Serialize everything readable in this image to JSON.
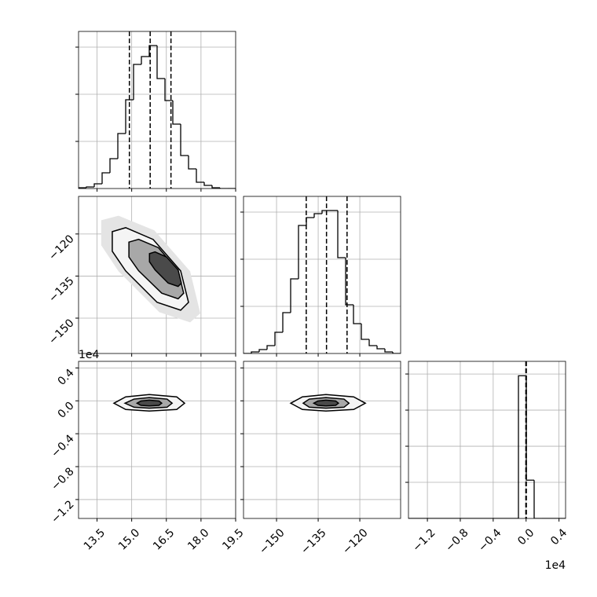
{
  "chart_data": [
    {
      "type": "hist",
      "xlim": [
        12.7,
        19.5
      ],
      "ylim": [
        0,
        2000
      ],
      "color": "#000000",
      "grid": true,
      "xticks": [
        13.5,
        15,
        16.5,
        18,
        19.5
      ],
      "yticks": [
        600,
        1200,
        1800
      ],
      "xtick_labels": false,
      "ytick_labels": false,
      "bins": [
        12.7,
        13.04,
        13.38,
        13.72,
        14.06,
        14.4,
        14.74,
        15.08,
        15.42,
        15.76,
        16.1,
        16.44,
        16.78,
        17.12,
        17.46,
        17.8,
        18.14,
        18.48,
        18.82,
        19.16,
        19.5
      ],
      "counts": [
        10,
        20,
        60,
        200,
        380,
        700,
        1130,
        1580,
        1680,
        1820,
        1400,
        1120,
        820,
        420,
        250,
        80,
        40,
        10,
        0,
        0
      ],
      "quantiles": [
        14.9,
        15.8,
        16.7
      ]
    },
    {
      "type": "contour",
      "xlim": [
        12.7,
        19.5
      ],
      "ylim": [
        -162.6,
        -106.6
      ],
      "grid": true,
      "xticks": [
        13.5,
        15,
        16.5,
        18,
        19.5
      ],
      "yticks": [
        {
          "value": -150,
          "label": "−150"
        },
        {
          "value": -135,
          "label": "−135"
        },
        {
          "value": -120,
          "label": "−120"
        }
      ],
      "xtick_labels": false,
      "ytick_labels": true,
      "contours": [
        {
          "fill": "#e4e4e4",
          "stroke": "none",
          "x": [
            13.68,
            14.43,
            15.98,
            17.53,
            17.97,
            17.53,
            16.2,
            14.43,
            13.68
          ],
          "y": [
            -115.1,
            -113.5,
            -118.7,
            -133.3,
            -148.3,
            -151.5,
            -147.9,
            -133.3,
            -124.0
          ]
        },
        {
          "fill": "#f4f4f4",
          "stroke": "#000000",
          "x": [
            14.16,
            14.74,
            15.93,
            17.12,
            17.46,
            17.12,
            16.1,
            14.74,
            14.16
          ],
          "y": [
            -119.16,
            -117.76,
            -121.96,
            -133.17,
            -144.37,
            -147.17,
            -144.37,
            -133.17,
            -126.16
          ]
        },
        {
          "fill": "#a8a8a8",
          "stroke": "#000000",
          "x": [
            14.88,
            15.3,
            16.16,
            17.01,
            17.25,
            17.01,
            16.3,
            15.3,
            14.88
          ],
          "y": [
            -122.9,
            -121.9,
            -124.9,
            -133.1,
            -141.1,
            -143.1,
            -141.1,
            -133.1,
            -128.2
          ]
        },
        {
          "fill": "#4a4a4a",
          "stroke": "#000000",
          "x": [
            15.77,
            16.01,
            16.51,
            17.01,
            17.15,
            17.01,
            16.58,
            16.01,
            15.77
          ],
          "y": [
            -127.0,
            -126.4,
            -128.2,
            -132.8,
            -137.5,
            -138.7,
            -137.5,
            -132.8,
            -129.9
          ]
        }
      ]
    },
    {
      "type": "hist",
      "xlim": [
        -161.9,
        -105.3
      ],
      "ylim": [
        0,
        2000
      ],
      "color": "#000000",
      "grid": true,
      "xticks": [
        -150,
        -135,
        -120
      ],
      "yticks": [
        600,
        1200,
        1800
      ],
      "xtick_labels": false,
      "ytick_labels": false,
      "bins": [
        -161.9,
        -159.07,
        -156.24,
        -153.41,
        -150.58,
        -147.75,
        -144.92,
        -142.09,
        -139.26,
        -136.43,
        -133.6,
        -130.77,
        -127.94,
        -125.11,
        -122.28,
        -119.45,
        -116.62,
        -113.79,
        -110.96,
        -108.13,
        -105.3
      ],
      "counts": [
        0,
        20,
        50,
        100,
        270,
        520,
        950,
        1630,
        1730,
        1780,
        1820,
        1820,
        1220,
        620,
        380,
        180,
        100,
        60,
        20,
        0
      ],
      "quantiles": [
        -139.3,
        -132.0,
        -124.6
      ]
    },
    {
      "type": "contour",
      "xlim": [
        12.7,
        19.5
      ],
      "ylim": [
        -1.43,
        0.48
      ],
      "grid": true,
      "xticks": [
        13.5,
        {
          "value": 15,
          "label": "15.0"
        },
        16.5,
        {
          "value": 18,
          "label": "18.0"
        },
        19.5
      ],
      "yticks": [
        {
          "value": -1.2,
          "label": "−1.2"
        },
        {
          "value": -0.8,
          "label": "−0.8"
        },
        {
          "value": -0.4,
          "label": "−0.4"
        },
        {
          "value": 0,
          "label": "0.0"
        },
        0.4
      ],
      "xtick_labels": true,
      "ytick_labels": true,
      "y_offset_label": "1e4",
      "contours": [
        {
          "fill": "#f4f4f4",
          "stroke": "#000000",
          "x": [
            14.23,
            14.74,
            15.76,
            16.95,
            17.29,
            16.95,
            15.76,
            14.74
          ],
          "y": [
            -0.029,
            0.048,
            0.076,
            0.048,
            -0.029,
            -0.105,
            -0.124,
            -0.105
          ]
        },
        {
          "fill": "#a8a8a8",
          "stroke": "#000000",
          "x": [
            14.71,
            15.1,
            15.76,
            16.53,
            16.75,
            16.53,
            15.76,
            15.1
          ],
          "y": [
            -0.029,
            0.021,
            0.039,
            0.021,
            -0.029,
            -0.078,
            -0.09,
            -0.078
          ]
        },
        {
          "fill": "#4a4a4a",
          "stroke": "#000000",
          "x": [
            15.23,
            15.4,
            15.76,
            16.18,
            16.3,
            16.18,
            15.76,
            15.4
          ],
          "y": [
            -0.029,
            -0.002,
            0.008,
            -0.002,
            -0.029,
            -0.055,
            -0.062,
            -0.055
          ]
        }
      ]
    },
    {
      "type": "contour",
      "xlim": [
        -161.9,
        -105.3
      ],
      "ylim": [
        -1.43,
        0.48
      ],
      "grid": true,
      "xticks": [
        {
          "value": -150,
          "label": "−150"
        },
        {
          "value": -135,
          "label": "−135"
        },
        {
          "value": -120,
          "label": "−120"
        }
      ],
      "yticks": [
        -1.2,
        -0.8,
        -0.4,
        0,
        0.4
      ],
      "xtick_labels": true,
      "ytick_labels": false,
      "contours": [
        {
          "fill": "#f4f4f4",
          "stroke": "#000000",
          "x": [
            -144.9,
            -140.7,
            -132.2,
            -122.2,
            -118.0,
            -122.2,
            -132.2,
            -140.7
          ],
          "y": [
            -0.029,
            0.048,
            0.076,
            0.048,
            -0.029,
            -0.105,
            -0.124,
            -0.105
          ]
        },
        {
          "fill": "#a8a8a8",
          "stroke": "#000000",
          "x": [
            -140.4,
            -138.2,
            -132.2,
            -125.7,
            -123.9,
            -125.7,
            -132.2,
            -138.2
          ],
          "y": [
            -0.029,
            0.021,
            0.039,
            0.021,
            -0.029,
            -0.078,
            -0.09,
            -0.078
          ]
        },
        {
          "fill": "#4a4a4a",
          "stroke": "#000000",
          "x": [
            -136.6,
            -135.1,
            -132.2,
            -128.7,
            -127.7,
            -128.7,
            -132.2,
            -135.1
          ],
          "y": [
            -0.029,
            -0.002,
            0.008,
            -0.002,
            -0.029,
            -0.055,
            -0.062,
            -0.055
          ]
        }
      ]
    },
    {
      "type": "hist",
      "xlim": [
        -1.43,
        0.48
      ],
      "ylim": [
        0,
        4350
      ],
      "color": "#000000",
      "grid": true,
      "xticks": [
        {
          "value": -1.2,
          "label": "−1.2"
        },
        {
          "value": -0.8,
          "label": "−0.8"
        },
        {
          "value": -0.4,
          "label": "−0.4"
        },
        {
          "value": 0,
          "label": "0.0"
        },
        0.4
      ],
      "yticks": [
        1000,
        2000,
        3000,
        4000
      ],
      "xtick_labels": true,
      "ytick_labels": false,
      "x_offset_label": "1e4",
      "bins": [
        -1.43,
        -1.3345,
        -1.239,
        -1.1435,
        -1.048,
        -0.9525,
        -0.857,
        -0.7615,
        -0.666,
        -0.5705,
        -0.475,
        -0.3795,
        -0.284,
        -0.1885,
        -0.093,
        0.0025,
        0.098,
        0.1935,
        0.289,
        0.3845,
        0.48
      ],
      "counts": [
        0,
        0,
        0,
        0,
        0,
        0,
        0,
        0,
        0,
        0,
        0,
        0,
        0,
        0,
        3950,
        1060,
        0,
        0,
        0,
        0
      ],
      "quantiles": [
        -0.003,
        0.0,
        0.003
      ]
    }
  ]
}
